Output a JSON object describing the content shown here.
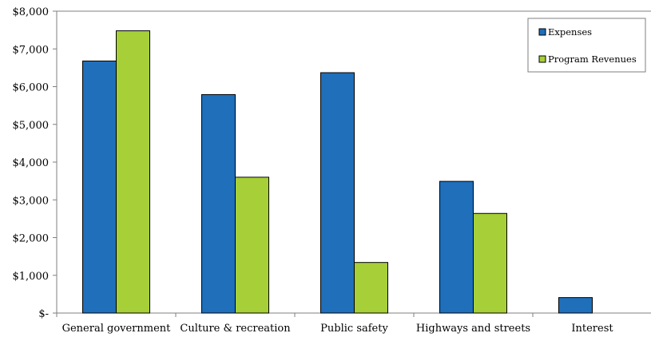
{
  "chart_data": {
    "type": "bar",
    "title": "",
    "xlabel": "",
    "ylabel": "",
    "categories": [
      "General government",
      "Culture & recreation",
      "Public safety",
      "Highways and streets",
      "Interest"
    ],
    "series": [
      {
        "name": "Expenses",
        "color": "#1f6fbb",
        "values": [
          6680,
          5790,
          6370,
          3490,
          410
        ]
      },
      {
        "name": "Program Revenues",
        "color": "#a6cf38",
        "values": [
          7480,
          3600,
          1340,
          2640,
          0
        ]
      }
    ],
    "ylim": [
      0,
      8000
    ],
    "y_ticks": [
      0,
      1000,
      2000,
      3000,
      4000,
      5000,
      6000,
      7000,
      8000
    ],
    "y_tick_labels": [
      "$-",
      "$1,000",
      "$2,000",
      "$3,000",
      "$4,000",
      "$5,000",
      "$6,000",
      "$7,000",
      "$8,000"
    ],
    "grid": false,
    "legend_position": "top-right"
  }
}
